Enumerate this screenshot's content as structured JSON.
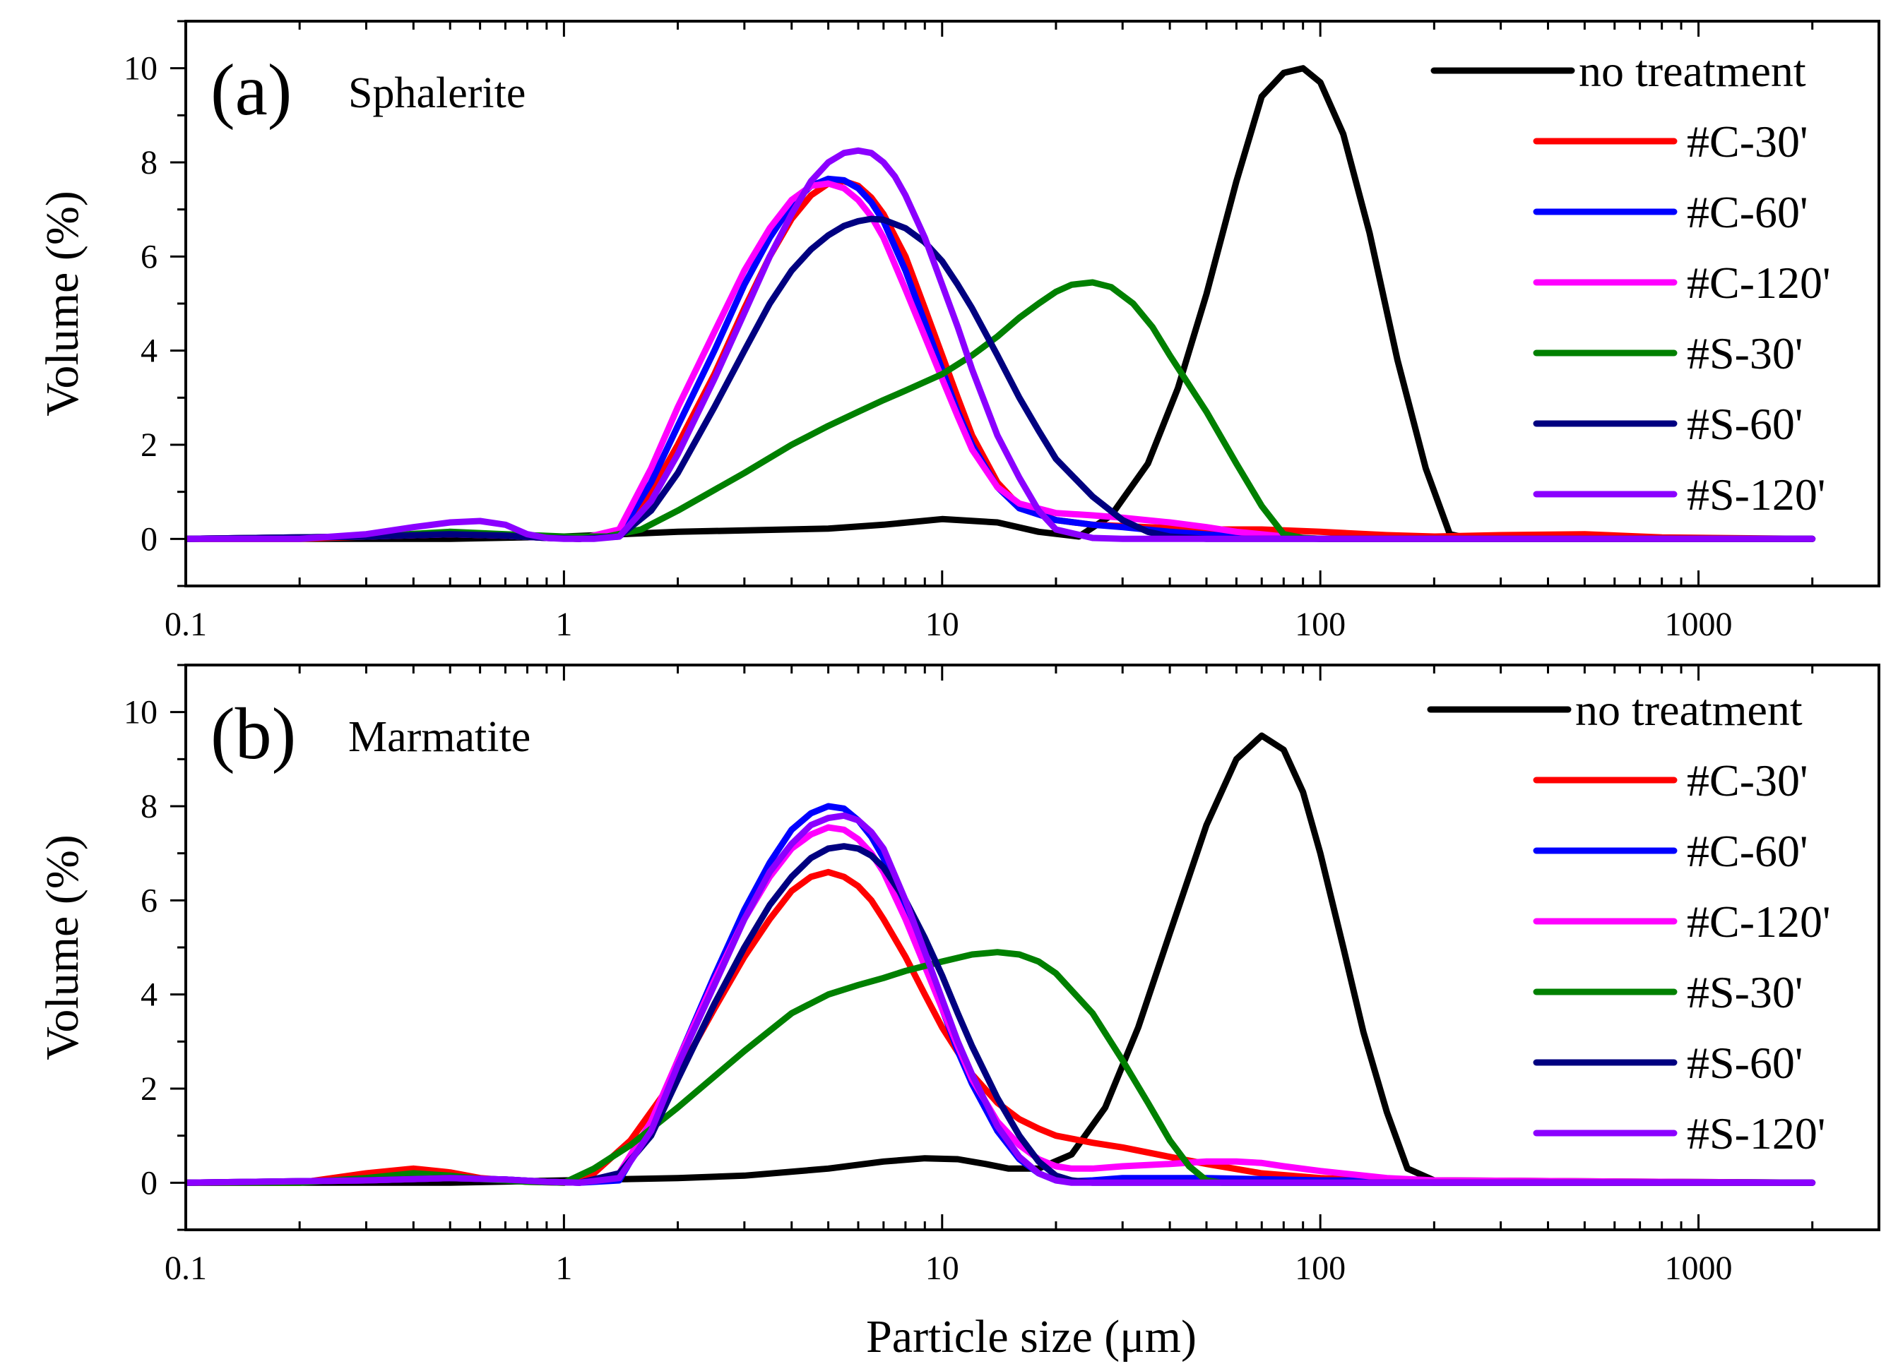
{
  "figure": {
    "xlabel": "Particle size (μm)",
    "ylabel": "Volume (%)"
  },
  "chart_data": [
    {
      "type": "line",
      "panel_label": "(a)",
      "title": "Sphalerite",
      "xlabel": "",
      "ylabel": "Volume (%)",
      "xscale": "log",
      "xlim": [
        0.1,
        3000
      ],
      "ylim": [
        -1,
        11
      ],
      "xticks": [
        0.1,
        1,
        10,
        100,
        1000
      ],
      "xtick_labels": [
        "0.1",
        "1",
        "10",
        "100",
        "1000"
      ],
      "yticks": [
        0,
        2,
        4,
        6,
        8,
        10
      ],
      "ytick_labels": [
        "0",
        "2",
        "4",
        "6",
        "8",
        "10"
      ],
      "legend_position": "top-right",
      "series": [
        {
          "name": "no treatment",
          "color": "#000000",
          "x": [
            0.1,
            0.5,
            1,
            2,
            5,
            7,
            10,
            14,
            18,
            23,
            28,
            35,
            42,
            50,
            60,
            70,
            80,
            90,
            100,
            115,
            135,
            160,
            190,
            220,
            250,
            500,
            2000
          ],
          "y": [
            0,
            0,
            0.05,
            0.15,
            0.22,
            0.3,
            0.42,
            0.35,
            0.15,
            0.05,
            0.5,
            1.6,
            3.2,
            5.2,
            7.6,
            9.4,
            9.9,
            10.0,
            9.7,
            8.6,
            6.5,
            3.8,
            1.5,
            0.1,
            0,
            0,
            0
          ]
        },
        {
          "name": "#C-30'",
          "color": "#ff0000",
          "x": [
            0.1,
            0.2,
            0.3,
            0.5,
            0.7,
            0.9,
            1.1,
            1.4,
            1.7,
            2,
            2.5,
            3,
            3.5,
            4,
            4.5,
            5,
            5.5,
            6,
            6.5,
            7,
            8,
            9,
            10,
            11,
            12,
            14,
            16,
            20,
            25,
            35,
            50,
            70,
            100,
            150,
            200,
            300,
            500,
            800,
            2000
          ],
          "y": [
            0,
            0,
            0.05,
            0.1,
            0.07,
            0.02,
            0,
            0.1,
            1.0,
            2.0,
            3.5,
            4.9,
            6.0,
            6.8,
            7.3,
            7.55,
            7.6,
            7.5,
            7.25,
            6.9,
            6.0,
            4.9,
            3.9,
            3.0,
            2.2,
            1.2,
            0.7,
            0.4,
            0.3,
            0.25,
            0.2,
            0.2,
            0.15,
            0.08,
            0.05,
            0.08,
            0.1,
            0.03,
            0
          ]
        },
        {
          "name": "#C-60'",
          "color": "#0000ff",
          "x": [
            0.1,
            0.3,
            0.5,
            0.7,
            0.9,
            1.1,
            1.4,
            1.7,
            2,
            2.5,
            3,
            3.5,
            4,
            4.5,
            5,
            5.5,
            6,
            6.5,
            7,
            8,
            9,
            10,
            11,
            12,
            14,
            16,
            20,
            25,
            30,
            40,
            60,
            100,
            2000
          ],
          "y": [
            0,
            0.05,
            0.1,
            0.07,
            0.02,
            0,
            0.1,
            1.2,
            2.4,
            4.0,
            5.4,
            6.4,
            7.1,
            7.5,
            7.65,
            7.62,
            7.45,
            7.15,
            6.75,
            5.7,
            4.6,
            3.6,
            2.7,
            2.0,
            1.1,
            0.65,
            0.4,
            0.3,
            0.25,
            0.15,
            0.05,
            0,
            0
          ]
        },
        {
          "name": "#C-120'",
          "color": "#ff00ff",
          "x": [
            0.1,
            0.3,
            0.5,
            0.7,
            0.9,
            1.1,
            1.4,
            1.7,
            2,
            2.5,
            3,
            3.5,
            4,
            4.5,
            5,
            5.5,
            6,
            6.5,
            7,
            8,
            9,
            10,
            11,
            12,
            14,
            16,
            20,
            25,
            30,
            40,
            50,
            60,
            80,
            100,
            2000
          ],
          "y": [
            0,
            0.05,
            0.1,
            0.07,
            0.02,
            0,
            0.2,
            1.5,
            2.8,
            4.4,
            5.7,
            6.6,
            7.2,
            7.5,
            7.55,
            7.45,
            7.2,
            6.85,
            6.4,
            5.3,
            4.3,
            3.4,
            2.6,
            1.9,
            1.1,
            0.75,
            0.55,
            0.5,
            0.45,
            0.35,
            0.25,
            0.15,
            0.05,
            0,
            0
          ]
        },
        {
          "name": "#S-30'",
          "color": "#008000",
          "x": [
            0.1,
            0.3,
            0.5,
            0.7,
            1,
            1.3,
            1.6,
            2,
            3,
            4,
            5,
            6,
            7,
            8,
            10,
            12,
            14,
            16,
            18,
            20,
            22,
            25,
            28,
            32,
            36,
            40,
            50,
            60,
            70,
            80,
            90,
            100,
            2000
          ],
          "y": [
            0,
            0.05,
            0.15,
            0.1,
            0.05,
            0.05,
            0.2,
            0.6,
            1.4,
            2.0,
            2.4,
            2.7,
            2.95,
            3.15,
            3.5,
            3.9,
            4.3,
            4.7,
            5.0,
            5.25,
            5.4,
            5.45,
            5.35,
            5.0,
            4.5,
            3.9,
            2.7,
            1.6,
            0.7,
            0.1,
            0.02,
            0,
            0
          ]
        },
        {
          "name": "#S-60'",
          "color": "#000080",
          "x": [
            0.1,
            0.3,
            0.5,
            0.7,
            0.9,
            1.1,
            1.4,
            1.7,
            2,
            2.5,
            3,
            3.5,
            4,
            4.5,
            5,
            5.5,
            6,
            6.5,
            7,
            8,
            9,
            10,
            11,
            12,
            14,
            16,
            18,
            20,
            25,
            30,
            35,
            40,
            50,
            2000
          ],
          "y": [
            0,
            0.05,
            0.1,
            0.07,
            0.02,
            0,
            0.05,
            0.6,
            1.4,
            2.8,
            4.0,
            5.0,
            5.7,
            6.15,
            6.45,
            6.65,
            6.75,
            6.8,
            6.78,
            6.6,
            6.3,
            5.9,
            5.4,
            4.9,
            3.9,
            3.0,
            2.3,
            1.7,
            0.9,
            0.4,
            0.15,
            0.05,
            0,
            0
          ]
        },
        {
          "name": "#S-120'",
          "color": "#8b00ff",
          "x": [
            0.1,
            0.2,
            0.3,
            0.4,
            0.5,
            0.6,
            0.7,
            0.8,
            0.9,
            1,
            1.2,
            1.4,
            1.7,
            2,
            2.5,
            3,
            3.5,
            4,
            4.5,
            5,
            5.5,
            6,
            6.5,
            7,
            7.5,
            8,
            9,
            10,
            11,
            12,
            14,
            16,
            18,
            20,
            25,
            30,
            2000
          ],
          "y": [
            0,
            0,
            0.1,
            0.25,
            0.35,
            0.38,
            0.3,
            0.1,
            0.02,
            0,
            0,
            0.05,
            0.8,
            1.8,
            3.4,
            4.8,
            6.0,
            6.9,
            7.6,
            8.0,
            8.2,
            8.25,
            8.2,
            8.0,
            7.7,
            7.3,
            6.4,
            5.4,
            4.5,
            3.6,
            2.2,
            1.3,
            0.6,
            0.2,
            0.02,
            0,
            0
          ]
        }
      ]
    },
    {
      "type": "line",
      "panel_label": "(b)",
      "title": "Marmatite",
      "xlabel": "Particle size (μm)",
      "ylabel": "Volume (%)",
      "xscale": "log",
      "xlim": [
        0.1,
        3000
      ],
      "ylim": [
        -1,
        11
      ],
      "xticks": [
        0.1,
        1,
        10,
        100,
        1000
      ],
      "xtick_labels": [
        "0.1",
        "1",
        "10",
        "100",
        "1000"
      ],
      "yticks": [
        0,
        2,
        4,
        6,
        8,
        10
      ],
      "ytick_labels": [
        "0",
        "2",
        "4",
        "6",
        "8",
        "10"
      ],
      "legend_position": "top-right",
      "series": [
        {
          "name": "no treatment",
          "color": "#000000",
          "x": [
            0.1,
            0.5,
            1,
            2,
            3,
            5,
            7,
            9,
            11,
            13,
            15,
            18,
            22,
            27,
            33,
            40,
            50,
            60,
            70,
            80,
            90,
            100,
            115,
            130,
            150,
            170,
            200,
            2000
          ],
          "y": [
            0,
            0,
            0.05,
            0.1,
            0.15,
            0.3,
            0.45,
            0.52,
            0.5,
            0.4,
            0.3,
            0.3,
            0.6,
            1.6,
            3.3,
            5.3,
            7.6,
            9.0,
            9.5,
            9.2,
            8.3,
            7.0,
            5.0,
            3.2,
            1.5,
            0.3,
            0.05,
            0
          ]
        },
        {
          "name": "#C-30'",
          "color": "#ff0000",
          "x": [
            0.1,
            0.2,
            0.3,
            0.4,
            0.5,
            0.6,
            0.8,
            1,
            1.2,
            1.5,
            2,
            2.5,
            3,
            3.5,
            4,
            4.5,
            5,
            5.5,
            6,
            6.5,
            7,
            8,
            9,
            10,
            12,
            14,
            16,
            18,
            20,
            25,
            30,
            40,
            50,
            70,
            100,
            200,
            2000
          ],
          "y": [
            0,
            0,
            0.2,
            0.3,
            0.22,
            0.1,
            0.02,
            0,
            0.2,
            0.9,
            2.3,
            3.7,
            4.8,
            5.6,
            6.2,
            6.5,
            6.6,
            6.5,
            6.3,
            6.0,
            5.6,
            4.8,
            4.0,
            3.3,
            2.3,
            1.7,
            1.35,
            1.15,
            1.0,
            0.85,
            0.75,
            0.55,
            0.4,
            0.2,
            0.1,
            0,
            0
          ]
        },
        {
          "name": "#C-60'",
          "color": "#0000ff",
          "x": [
            0.1,
            0.3,
            0.5,
            0.7,
            0.9,
            1.1,
            1.4,
            1.7,
            2,
            2.5,
            3,
            3.5,
            4,
            4.5,
            5,
            5.5,
            6,
            6.5,
            7,
            8,
            9,
            10,
            11,
            12,
            14,
            16,
            18,
            20,
            22,
            25,
            30,
            50,
            100,
            2000
          ],
          "y": [
            0,
            0.05,
            0.1,
            0.07,
            0.02,
            0,
            0.05,
            1.2,
            2.6,
            4.4,
            5.8,
            6.8,
            7.5,
            7.85,
            8.0,
            7.95,
            7.7,
            7.35,
            6.9,
            5.8,
            4.7,
            3.7,
            2.8,
            2.1,
            1.1,
            0.5,
            0.2,
            0.05,
            0.03,
            0.05,
            0.1,
            0.1,
            0.05,
            0
          ]
        },
        {
          "name": "#C-120'",
          "color": "#ff00ff",
          "x": [
            0.1,
            0.3,
            0.5,
            0.7,
            0.9,
            1.1,
            1.4,
            1.7,
            2,
            2.5,
            3,
            3.5,
            4,
            4.5,
            5,
            5.5,
            6,
            6.5,
            7,
            8,
            9,
            10,
            11,
            12,
            14,
            16,
            18,
            20,
            22,
            25,
            30,
            40,
            50,
            60,
            70,
            80,
            100,
            150,
            200,
            2000
          ],
          "y": [
            0,
            0.05,
            0.1,
            0.07,
            0.02,
            0,
            0.2,
            1.3,
            2.6,
            4.3,
            5.6,
            6.5,
            7.1,
            7.4,
            7.55,
            7.5,
            7.3,
            7.0,
            6.6,
            5.6,
            4.6,
            3.7,
            2.9,
            2.2,
            1.3,
            0.8,
            0.5,
            0.35,
            0.3,
            0.3,
            0.35,
            0.4,
            0.45,
            0.45,
            0.42,
            0.35,
            0.25,
            0.1,
            0.05,
            0
          ]
        },
        {
          "name": "#S-30'",
          "color": "#008000",
          "x": [
            0.1,
            0.2,
            0.3,
            0.4,
            0.5,
            0.6,
            0.8,
            1,
            1.2,
            1.5,
            2,
            3,
            4,
            5,
            6,
            7,
            8,
            10,
            12,
            14,
            16,
            18,
            20,
            25,
            30,
            35,
            40,
            45,
            50,
            55,
            60,
            2000
          ],
          "y": [
            0,
            0,
            0.1,
            0.2,
            0.15,
            0.08,
            0.02,
            0,
            0.3,
            0.8,
            1.6,
            2.8,
            3.6,
            4.0,
            4.2,
            4.35,
            4.5,
            4.7,
            4.85,
            4.9,
            4.85,
            4.7,
            4.45,
            3.6,
            2.6,
            1.7,
            0.9,
            0.35,
            0.05,
            0,
            0,
            0
          ]
        },
        {
          "name": "#S-60'",
          "color": "#000080",
          "x": [
            0.1,
            0.3,
            0.5,
            0.7,
            0.9,
            1.1,
            1.4,
            1.7,
            2,
            2.5,
            3,
            3.5,
            4,
            4.5,
            5,
            5.5,
            6,
            6.5,
            7,
            8,
            9,
            10,
            11,
            12,
            14,
            16,
            18,
            20,
            22,
            25,
            30,
            2000
          ],
          "y": [
            0,
            0.05,
            0.1,
            0.07,
            0.02,
            0,
            0.2,
            1.0,
            2.2,
            3.8,
            5.0,
            5.9,
            6.5,
            6.9,
            7.1,
            7.15,
            7.1,
            6.95,
            6.7,
            6.0,
            5.2,
            4.4,
            3.6,
            2.9,
            1.8,
            1.0,
            0.45,
            0.15,
            0.05,
            0,
            0,
            0
          ]
        },
        {
          "name": "#S-120'",
          "color": "#8b00ff",
          "x": [
            0.1,
            0.3,
            0.5,
            0.7,
            0.9,
            1.1,
            1.4,
            1.7,
            2,
            2.5,
            3,
            3.5,
            4,
            4.5,
            5,
            5.5,
            6,
            6.5,
            7,
            8,
            9,
            10,
            11,
            12,
            14,
            16,
            18,
            20,
            22,
            25,
            30,
            2000
          ],
          "y": [
            0,
            0.05,
            0.1,
            0.07,
            0.02,
            0,
            0.1,
            1.1,
            2.5,
            4.2,
            5.6,
            6.6,
            7.2,
            7.6,
            7.75,
            7.8,
            7.7,
            7.45,
            7.1,
            6.0,
            4.9,
            3.9,
            3.0,
            2.3,
            1.2,
            0.55,
            0.2,
            0.05,
            0,
            0,
            0,
            0
          ]
        }
      ]
    }
  ]
}
